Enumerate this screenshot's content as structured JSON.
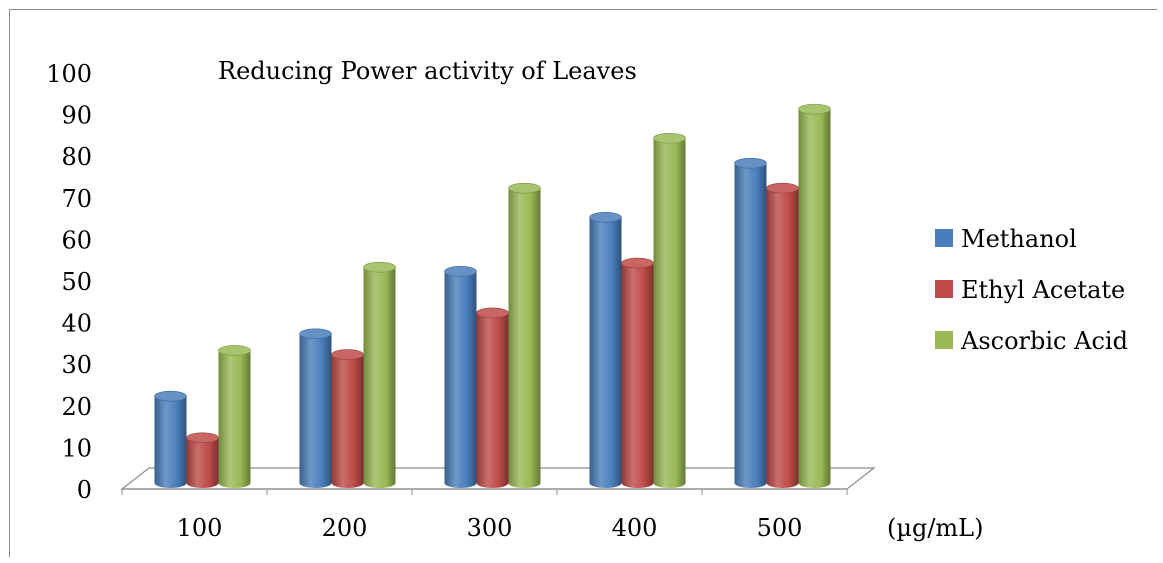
{
  "chart_data": {
    "type": "bar",
    "title": "Reducing Power activity of Leaves",
    "xlabel": "(µg/mL)",
    "ylabel": "",
    "categories": [
      "100",
      "200",
      "300",
      "400",
      "500"
    ],
    "yticks": [
      "0",
      "10",
      "20",
      "30",
      "40",
      "50",
      "60",
      "70",
      "80",
      "90",
      "100"
    ],
    "ylim": [
      0,
      100
    ],
    "legend_position": "right",
    "grid": false,
    "series": [
      {
        "name": "Methanol",
        "color": "#4a7ebb",
        "values": [
          24,
          39,
          54,
          67,
          80
        ]
      },
      {
        "name": "Ethyl Acetate",
        "color": "#be4b48",
        "values": [
          14,
          34,
          44,
          56,
          74
        ]
      },
      {
        "name": "Ascorbic Acid",
        "color": "#98b954",
        "values": [
          35,
          55,
          74,
          86,
          93
        ]
      }
    ]
  }
}
